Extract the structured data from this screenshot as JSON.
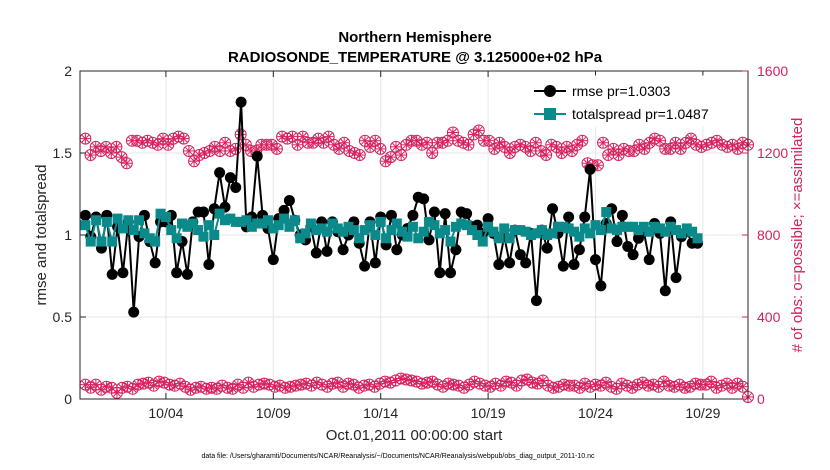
{
  "colors": {
    "rmse": "#000000",
    "spread": "#0a8a8a",
    "obs": "#d6205f",
    "grid": "#e6e6e6",
    "axis": "#262626"
  },
  "chart_data": {
    "type": "line",
    "title_line1": "Northern Hemisphere",
    "title_line2": "RADIOSONDE_TEMPERATURE @ 3.125000e+02 hPa",
    "xlabel": "Oct.01,2011 00:00:00 start",
    "ylabel": "rmse and totalspread",
    "ylabel_right": "# of obs: o=possible; ×=assimilated",
    "footnote": "data file: /Users/gharamti/Documents/NCAR/Reanalysis/~/Documents/NCAR/Reanalysis/webpub/obs_diag_output_2011-10.nc",
    "xlim": [
      1,
      32.1
    ],
    "ylim": [
      0,
      2
    ],
    "ylim_right": [
      0,
      1600
    ],
    "x_ticks": [
      5,
      10,
      15,
      20,
      25,
      30
    ],
    "x_tick_labels": [
      "10/04",
      "10/09",
      "10/14",
      "10/19",
      "10/24",
      "10/29"
    ],
    "y_ticks": [
      0,
      0.5,
      1,
      1.5,
      2
    ],
    "y_tick_labels": [
      "0",
      "0.5",
      "1",
      "1.5",
      "2"
    ],
    "y_ticks_right": [
      0,
      400,
      800,
      1200,
      1600
    ],
    "y_tick_labels_right": [
      "0",
      "400",
      "800",
      "1200",
      "1600"
    ],
    "legend": [
      {
        "name": "rmse pr=1.0303",
        "series": "rmse"
      },
      {
        "name": "totalspread pr=1.0487",
        "series": "spread"
      }
    ],
    "x_start": 1.25,
    "x_step": 0.25,
    "series": [
      {
        "name": "rmse",
        "values": [
          1.12,
          0.99,
          1.11,
          0.92,
          1.12,
          0.76,
          1.05,
          0.77,
          1.08,
          0.53,
          0.99,
          1.12,
          0.96,
          0.83,
          1.08,
          1.08,
          1.12,
          0.77,
          0.96,
          0.76,
          1.08,
          1.14,
          1.14,
          0.82,
          1.16,
          1.38,
          1.17,
          1.35,
          1.29,
          1.81,
          1.05,
          1.11,
          1.48,
          1.12,
          1.04,
          0.85,
          1.1,
          1.15,
          1.21,
          1.09,
          1.0,
          0.97,
          1.05,
          0.89,
          1.08,
          0.9,
          1.08,
          1.02,
          0.91,
          1.0,
          1.08,
          0.95,
          0.81,
          1.08,
          0.83,
          1.11,
          0.94,
          1.12,
          0.91,
          1.0,
          1.04,
          1.12,
          1.23,
          1.22,
          0.97,
          1.14,
          0.77,
          1.13,
          0.77,
          0.91,
          1.14,
          1.13,
          1.05,
          1.06,
          1.01,
          1.1,
          1.01,
          0.82,
          0.99,
          0.83,
          1.03,
          0.88,
          0.83,
          1.01,
          0.6,
          1.03,
          0.92,
          1.16,
          1.01,
          0.81,
          1.11,
          0.82,
          0.91,
          1.11,
          1.4,
          0.85,
          0.69,
          1.07,
          1.16,
          0.96,
          1.12,
          0.93,
          0.88,
          0.98,
          1.02,
          0.85,
          1.07,
          1.01,
          0.66,
          1.08,
          0.74,
          0.99,
          1.02,
          0.95,
          0.95
        ]
      },
      {
        "name": "totalspread",
        "values": [
          1.06,
          0.96,
          1.09,
          0.96,
          1.08,
          0.96,
          1.1,
          1.04,
          1.09,
          1.03,
          1.09,
          1.01,
          0.98,
          0.96,
          1.13,
          1.11,
          1.03,
          0.98,
          1.07,
          1.05,
          1.07,
          1.03,
          0.99,
          1.06,
          1.0,
          1.13,
          1.09,
          1.1,
          1.08,
          1.08,
          1.09,
          1.05,
          1.07,
          1.07,
          1.09,
          1.04,
          1.06,
          1.1,
          1.05,
          1.09,
          0.98,
          1.01,
          1.07,
          1.03,
          1.04,
          1.02,
          1.07,
          1.04,
          1.02,
          1.05,
          1.03,
          0.98,
          1.03,
          1.06,
          1.0,
          1.08,
          0.98,
          1.03,
          1.07,
          1.02,
          0.99,
          1.05,
          0.98,
          1.02,
          1.08,
          1.06,
          1.01,
          1.03,
          0.96,
          1.05,
          1.07,
          1.06,
          1.03,
          1.0,
          0.96,
          1.05,
          1.02,
          0.98,
          1.04,
          0.98,
          1.03,
          1.03,
          1.02,
          1.0,
          1.01,
          1.03,
          1.0,
          1.01,
          1.05,
          1.05,
          1.04,
          1.02,
          0.99,
          1.04,
          1.01,
          1.06,
          1.03,
          1.14,
          1.04,
          1.03,
          1.05,
          1.05,
          1.05,
          1.03,
          1.05,
          1.02,
          1.05,
          1.04,
          1.02,
          1.05,
          1.03,
          1.01,
          1.04,
          1.02,
          0.98
        ]
      },
      {
        "name": "obs_possible_main",
        "values": [
          1270,
          1190,
          1230,
          1210,
          1230,
          1200,
          1230,
          1180,
          1150,
          1260,
          1260,
          1250,
          1260,
          1250,
          1240,
          1270,
          1240,
          1270,
          1280,
          1270,
          1210,
          1160,
          1190,
          1200,
          1210,
          1230,
          1210,
          1250,
          1210,
          1220,
          1290,
          1240,
          1210,
          1210,
          1240,
          1240,
          1240,
          1220,
          1280,
          1270,
          1280,
          1240,
          1280,
          1250,
          1250,
          1270,
          1250,
          1280,
          1240,
          1220,
          1250,
          1210,
          1200,
          1190,
          1260,
          1230,
          1260,
          1220,
          1160,
          1180,
          1230,
          1190,
          1240,
          1260,
          1260,
          1240,
          1250,
          1200,
          1250,
          1250,
          1260,
          1300,
          1260,
          1250,
          1240,
          1290,
          1310,
          1260,
          1260,
          1220,
          1250,
          1230,
          1200,
          1230,
          1240,
          1230,
          1210,
          1250,
          1210,
          1190,
          1240,
          1230,
          1200,
          1230,
          1210,
          1240,
          1260,
          1150,
          1140,
          1140,
          1250,
          1190,
          1220,
          1190,
          1220,
          1210,
          1210,
          1240,
          1220,
          1250,
          1270,
          1260,
          1220,
          1220,
          1250,
          1220,
          1250,
          1270,
          1240,
          1230,
          1240,
          1250,
          1260,
          1240,
          1230,
          1240,
          1220,
          1250,
          1240
        ]
      },
      {
        "name": "obs_possible_low",
        "values": [
          70,
          55,
          70,
          45,
          60,
          55,
          30,
          55,
          60,
          50,
          70,
          75,
          80,
          65,
          85,
          80,
          70,
          65,
          75,
          60,
          45,
          55,
          60,
          50,
          55,
          50,
          65,
          55,
          50,
          70,
          55,
          80,
          60,
          70,
          75,
          70,
          60,
          65,
          55,
          60,
          65,
          70,
          75,
          65,
          80,
          70,
          60,
          75,
          80,
          60,
          75,
          70,
          55,
          65,
          70,
          60,
          75,
          85,
          80,
          90,
          100,
          95,
          90,
          85,
          75,
          80,
          85,
          70,
          60,
          75,
          70,
          65,
          55,
          70,
          85,
          75,
          65,
          60,
          75,
          65,
          85,
          80,
          65,
          90,
          95,
          80,
          75,
          90,
          65,
          55,
          60,
          70,
          65,
          65,
          55,
          75,
          60,
          70,
          65,
          80,
          60,
          50,
          75,
          65,
          55,
          70,
          80,
          65,
          70,
          60,
          85,
          65,
          60,
          70,
          55,
          60,
          75,
          70,
          70,
          85,
          55,
          65,
          75,
          55,
          75,
          60,
          10
        ]
      }
    ]
  }
}
